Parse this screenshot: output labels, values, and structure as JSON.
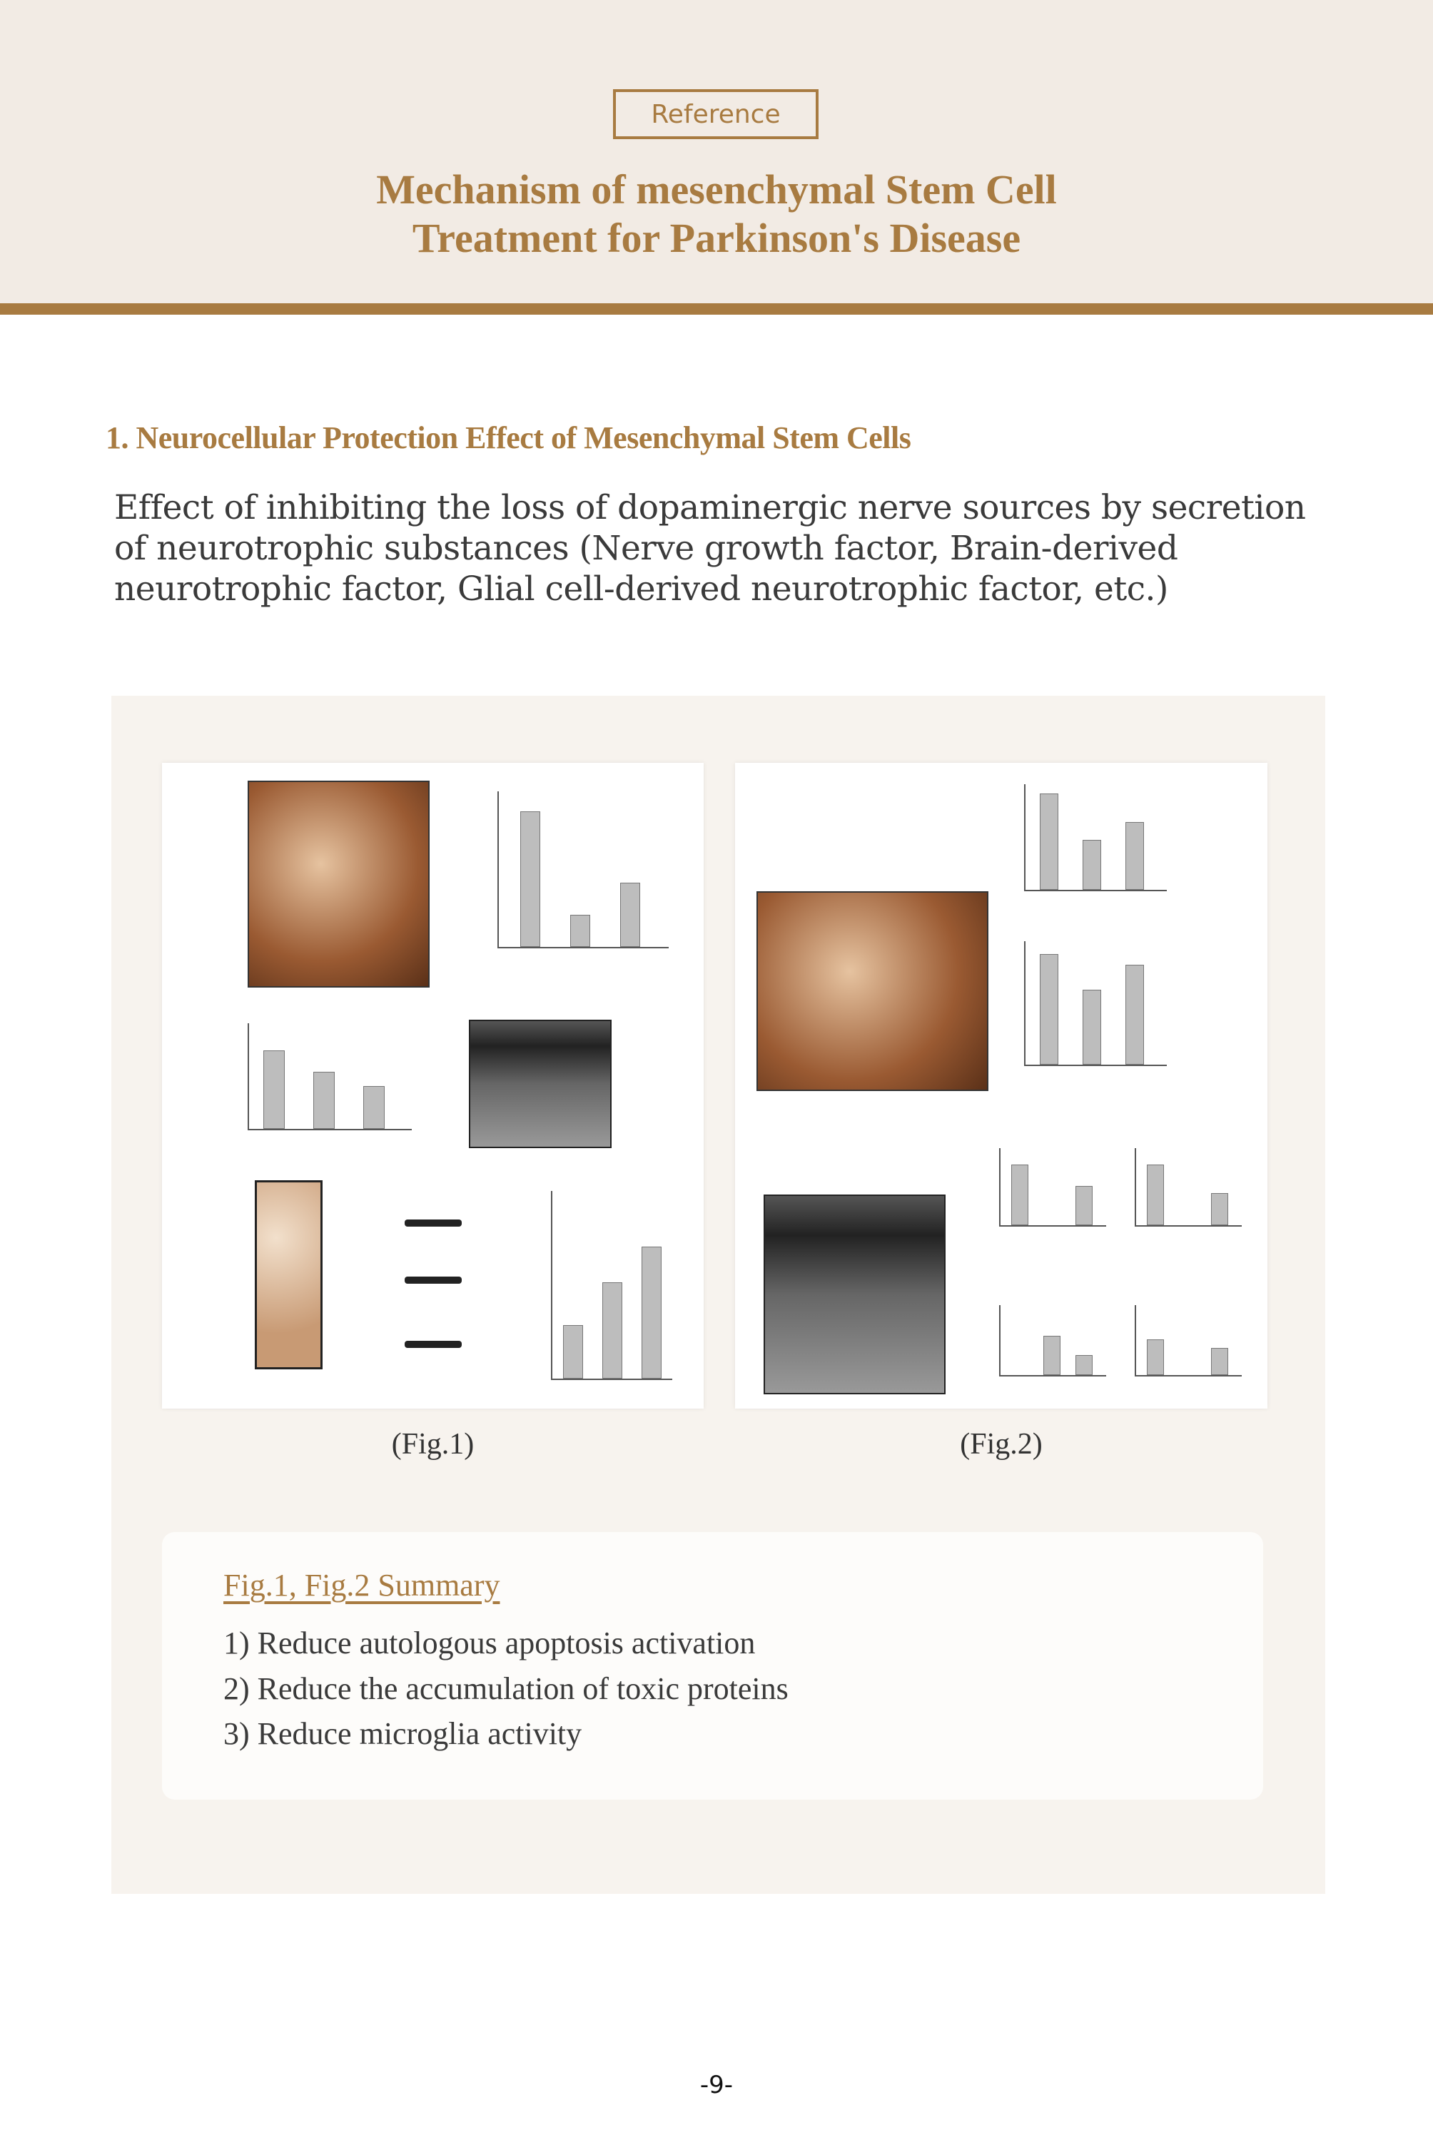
{
  "header": {
    "badge": "Reference",
    "title_line1": "Mechanism of mesenchymal Stem Cell",
    "title_line2": "Treatment for Parkinson's Disease"
  },
  "section": {
    "heading": "1. Neurocellular Protection Effect of Mesenchymal Stem Cells",
    "body": "Effect of inhibiting the loss of dopaminergic nerve sources by secretion of neurotrophic substances (Nerve growth factor, Brain-derived neurotrophic factor, Glial cell-derived neurotrophic factor, etc.)"
  },
  "figures": [
    {
      "caption": "(Fig.1)"
    },
    {
      "caption": "(Fig.2)"
    }
  ],
  "summary": {
    "title": "Fig.1, Fig.2  Summary",
    "items": [
      "1) Reduce autologous apoptosis activation",
      "2) Reduce the accumulation of toxic proteins",
      "3) Reduce microglia activity"
    ]
  },
  "page_number": "-9-",
  "colors": {
    "accent": "#a87b41",
    "header_bg": "#f2ebe4",
    "panel_bg": "#f7f3ee"
  }
}
